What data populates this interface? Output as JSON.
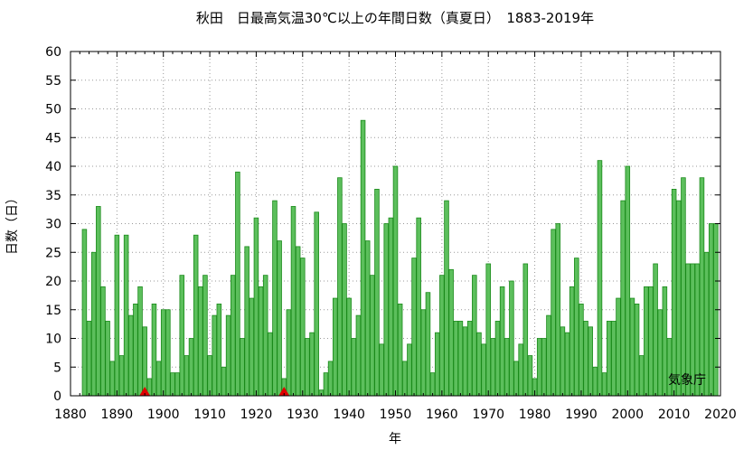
{
  "chart_data": {
    "type": "bar",
    "title": "秋田　日最高気温30℃以上の年間日数（真夏日）　1883-2019年",
    "xlabel": "年",
    "ylabel": "日数（日）",
    "credit": "気象庁",
    "xlim": [
      1880,
      2020
    ],
    "ylim": [
      0,
      60
    ],
    "xticks": [
      1880,
      1890,
      1900,
      1910,
      1920,
      1930,
      1940,
      1950,
      1960,
      1970,
      1980,
      1990,
      2000,
      2010,
      2020
    ],
    "yticks": [
      0,
      5,
      10,
      15,
      20,
      25,
      30,
      35,
      40,
      45,
      50,
      55,
      60
    ],
    "grid": true,
    "bar_color": "#5cbf5c",
    "bar_edge_color": "#1a8a1a",
    "marker_color": "#e00000",
    "x_start": 1883,
    "values": [
      29,
      13,
      25,
      33,
      19,
      13,
      6,
      28,
      7,
      28,
      14,
      16,
      19,
      12,
      3,
      16,
      6,
      15,
      15,
      4,
      4,
      21,
      7,
      10,
      28,
      19,
      21,
      7,
      14,
      16,
      5,
      14,
      21,
      39,
      10,
      26,
      17,
      31,
      19,
      21,
      11,
      34,
      27,
      3,
      15,
      33,
      26,
      24,
      10,
      11,
      32,
      1,
      4,
      6,
      17,
      38,
      30,
      17,
      10,
      14,
      48,
      27,
      21,
      36,
      9,
      30,
      31,
      40,
      16,
      6,
      9,
      24,
      31,
      15,
      18,
      4,
      11,
      21,
      34,
      22,
      13,
      13,
      12,
      13,
      21,
      11,
      9,
      23,
      10,
      13,
      19,
      10,
      20,
      6,
      9,
      23,
      7,
      3,
      10,
      10,
      14,
      29,
      30,
      12,
      11,
      19,
      24,
      16,
      13,
      12,
      5,
      41,
      4,
      13,
      13,
      17,
      34,
      40,
      17,
      16,
      7,
      19,
      19,
      23,
      15,
      19,
      10,
      36,
      34,
      38,
      23,
      23,
      23,
      38,
      25,
      30,
      30
    ],
    "markers": [
      1896,
      1926
    ]
  }
}
